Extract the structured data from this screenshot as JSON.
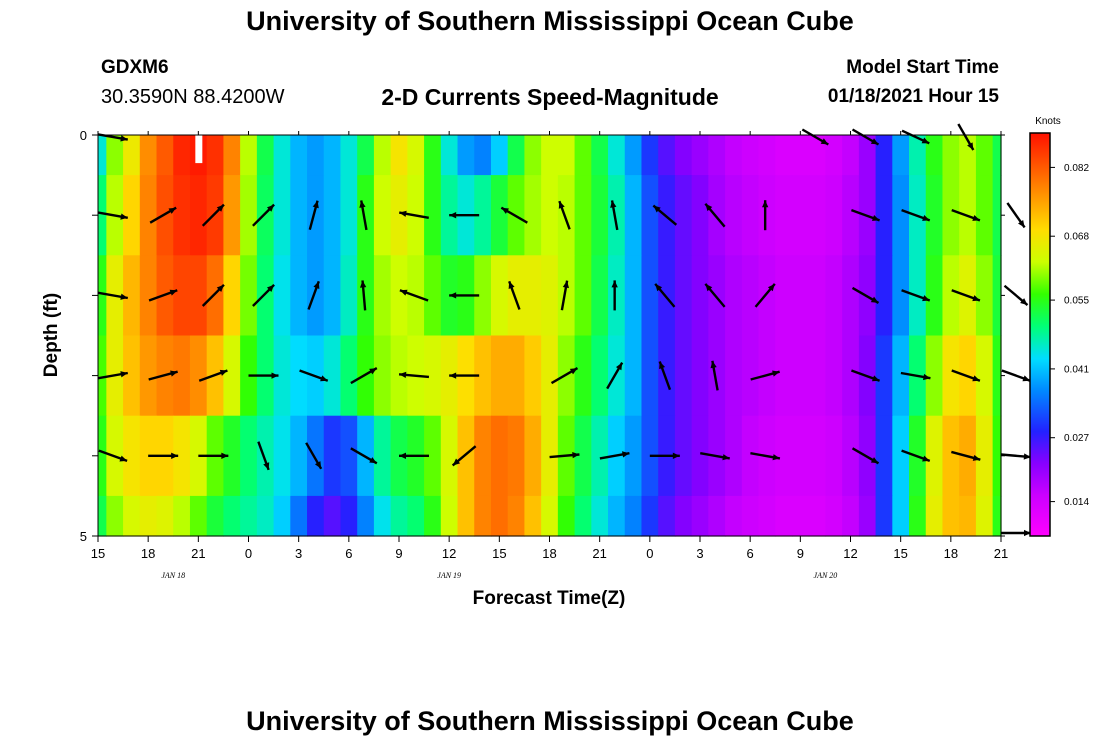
{
  "header": {
    "title": "University of Southern Mississippi Ocean Cube",
    "station": "GDXM6",
    "coords": "30.3590N 88.4200W",
    "chart_title": "2-D Currents Speed-Magnitude",
    "start_label": "Model Start Time",
    "start_value": "01/18/2021 Hour 15"
  },
  "footer": {
    "title": "University of Southern Mississippi Ocean Cube"
  },
  "chart_data": {
    "type": "heatmap",
    "title": "2-D Currents Speed-Magnitude",
    "xlabel": "Forecast Time(Z)",
    "ylabel": "Depth (ft)",
    "x_ticks": [
      "15",
      "18",
      "21",
      "0",
      "3",
      "6",
      "9",
      "12",
      "15",
      "18",
      "21",
      "0",
      "3",
      "6",
      "9",
      "12",
      "15",
      "18",
      "21"
    ],
    "x_range_hours": [
      0,
      54
    ],
    "date_labels": [
      {
        "text": "JAN 18",
        "hour": 4.5
      },
      {
        "text": "JAN 19",
        "hour": 21
      },
      {
        "text": "JAN 20",
        "hour": 43.5
      }
    ],
    "y_ticks": [
      "0",
      "5"
    ],
    "ylim": [
      0,
      5
    ],
    "depth_levels_ft": [
      0,
      1,
      2,
      3,
      4,
      5
    ],
    "speed_knots": [
      [
        0.045,
        0.06,
        0.067,
        0.077,
        0.082,
        0.087,
        0.088,
        0.086,
        0.078,
        0.062,
        0.052,
        0.045,
        0.04,
        0.038,
        0.04,
        0.045,
        0.052,
        0.062,
        0.068,
        0.064,
        0.055,
        0.045,
        0.038,
        0.036,
        0.042,
        0.052,
        0.06,
        0.063,
        0.063,
        0.058,
        0.052,
        0.045,
        0.038,
        0.03,
        0.025,
        0.022,
        0.02,
        0.018,
        0.016,
        0.015,
        0.014,
        0.013,
        0.013,
        0.013,
        0.014,
        0.016,
        0.02,
        0.028,
        0.038,
        0.047,
        0.055,
        0.06,
        0.062,
        0.058,
        0.052
      ],
      [
        0.05,
        0.062,
        0.07,
        0.078,
        0.083,
        0.086,
        0.087,
        0.085,
        0.076,
        0.061,
        0.051,
        0.045,
        0.04,
        0.038,
        0.04,
        0.045,
        0.055,
        0.063,
        0.066,
        0.063,
        0.055,
        0.048,
        0.045,
        0.048,
        0.053,
        0.058,
        0.061,
        0.063,
        0.062,
        0.058,
        0.053,
        0.047,
        0.04,
        0.032,
        0.027,
        0.024,
        0.022,
        0.019,
        0.017,
        0.016,
        0.015,
        0.014,
        0.014,
        0.014,
        0.015,
        0.017,
        0.02,
        0.028,
        0.037,
        0.046,
        0.054,
        0.06,
        0.062,
        0.058,
        0.052
      ],
      [
        0.055,
        0.066,
        0.073,
        0.078,
        0.082,
        0.084,
        0.084,
        0.08,
        0.07,
        0.059,
        0.05,
        0.044,
        0.04,
        0.038,
        0.04,
        0.046,
        0.055,
        0.061,
        0.063,
        0.062,
        0.058,
        0.054,
        0.055,
        0.06,
        0.064,
        0.066,
        0.066,
        0.065,
        0.062,
        0.058,
        0.052,
        0.046,
        0.04,
        0.032,
        0.027,
        0.024,
        0.022,
        0.02,
        0.018,
        0.017,
        0.016,
        0.015,
        0.015,
        0.015,
        0.016,
        0.018,
        0.021,
        0.028,
        0.037,
        0.046,
        0.055,
        0.062,
        0.065,
        0.06,
        0.053
      ],
      [
        0.057,
        0.066,
        0.072,
        0.076,
        0.078,
        0.079,
        0.077,
        0.072,
        0.064,
        0.056,
        0.05,
        0.045,
        0.043,
        0.042,
        0.045,
        0.05,
        0.056,
        0.06,
        0.062,
        0.063,
        0.064,
        0.066,
        0.069,
        0.072,
        0.074,
        0.074,
        0.071,
        0.066,
        0.06,
        0.055,
        0.05,
        0.045,
        0.04,
        0.032,
        0.027,
        0.024,
        0.022,
        0.02,
        0.018,
        0.017,
        0.016,
        0.015,
        0.015,
        0.015,
        0.016,
        0.018,
        0.022,
        0.03,
        0.04,
        0.05,
        0.06,
        0.068,
        0.07,
        0.064,
        0.055
      ],
      [
        0.055,
        0.064,
        0.068,
        0.07,
        0.07,
        0.068,
        0.064,
        0.058,
        0.054,
        0.05,
        0.047,
        0.044,
        0.04,
        0.035,
        0.03,
        0.032,
        0.04,
        0.048,
        0.052,
        0.054,
        0.058,
        0.064,
        0.072,
        0.078,
        0.08,
        0.079,
        0.074,
        0.066,
        0.058,
        0.052,
        0.047,
        0.042,
        0.038,
        0.032,
        0.027,
        0.024,
        0.022,
        0.02,
        0.018,
        0.016,
        0.015,
        0.014,
        0.014,
        0.014,
        0.015,
        0.017,
        0.021,
        0.03,
        0.042,
        0.054,
        0.065,
        0.072,
        0.074,
        0.066,
        0.056
      ],
      [
        0.052,
        0.06,
        0.064,
        0.066,
        0.065,
        0.062,
        0.058,
        0.053,
        0.05,
        0.048,
        0.046,
        0.042,
        0.035,
        0.028,
        0.025,
        0.028,
        0.036,
        0.044,
        0.048,
        0.05,
        0.055,
        0.063,
        0.072,
        0.078,
        0.08,
        0.078,
        0.072,
        0.064,
        0.056,
        0.05,
        0.045,
        0.04,
        0.036,
        0.03,
        0.025,
        0.022,
        0.02,
        0.018,
        0.016,
        0.015,
        0.014,
        0.013,
        0.013,
        0.013,
        0.014,
        0.016,
        0.02,
        0.03,
        0.042,
        0.055,
        0.066,
        0.072,
        0.073,
        0.065,
        0.055
      ]
    ],
    "vector_hours": [
      0,
      3,
      6,
      9,
      12,
      15,
      18,
      21,
      24,
      27,
      30,
      33,
      36,
      39,
      42,
      45,
      48,
      51,
      54
    ],
    "vector_depths_ft": [
      0,
      1,
      2,
      3,
      4,
      5
    ],
    "vector_direction_deg": [
      [
        100,
        0,
        0,
        0,
        0,
        0,
        0,
        0,
        0,
        0,
        0,
        0,
        0,
        0,
        0,
        0,
        0,
        0,
        0
      ],
      [
        100,
        60,
        45,
        45,
        15,
        350,
        280,
        270,
        300,
        340,
        350,
        310,
        320,
        0,
        20,
        110,
        110,
        110,
        145
      ],
      [
        100,
        70,
        45,
        45,
        20,
        355,
        290,
        270,
        340,
        10,
        0,
        320,
        320,
        40,
        115,
        120,
        110,
        110,
        130
      ],
      [
        80,
        75,
        70,
        90,
        110,
        60,
        275,
        270,
        75,
        60,
        30,
        340,
        350,
        75,
        120,
        110,
        100,
        110,
        110
      ],
      [
        110,
        90,
        90,
        160,
        150,
        120,
        270,
        230,
        90,
        85,
        80,
        90,
        100,
        100,
        120,
        120,
        110,
        105,
        95
      ],
      [
        0,
        0,
        0,
        0,
        0,
        0,
        0,
        0,
        0,
        0,
        0,
        0,
        0,
        0,
        0,
        0,
        0,
        0,
        90
      ]
    ],
    "vector_present": [
      [
        1,
        0,
        0,
        0,
        0,
        0,
        0,
        0,
        0,
        0,
        0,
        0,
        0,
        0,
        1,
        1,
        1,
        1,
        0
      ],
      [
        1,
        1,
        1,
        1,
        1,
        1,
        1,
        1,
        1,
        1,
        1,
        1,
        1,
        1,
        0,
        1,
        1,
        1,
        1
      ],
      [
        1,
        1,
        1,
        1,
        1,
        1,
        1,
        1,
        1,
        1,
        1,
        1,
        1,
        1,
        0,
        1,
        1,
        1,
        1
      ],
      [
        1,
        1,
        1,
        1,
        1,
        1,
        1,
        1,
        0,
        1,
        1,
        1,
        1,
        1,
        0,
        1,
        1,
        1,
        1
      ],
      [
        1,
        1,
        1,
        1,
        1,
        1,
        1,
        1,
        0,
        1,
        1,
        1,
        1,
        1,
        0,
        1,
        1,
        1,
        1
      ],
      [
        0,
        0,
        0,
        0,
        0,
        0,
        0,
        0,
        0,
        0,
        0,
        0,
        0,
        0,
        0,
        0,
        0,
        0,
        1
      ]
    ],
    "vector_top_row_override_deg": [
      [
        14,
        120
      ],
      [
        15,
        120
      ],
      [
        16,
        115
      ],
      [
        17,
        150
      ]
    ],
    "colorbar": {
      "unit": "Knots",
      "labels": [
        "0.082",
        "0.068",
        "0.055",
        "0.041",
        "0.027",
        "0.014"
      ],
      "range": [
        0.007,
        0.089
      ]
    },
    "missing_data_patch": {
      "hour": 6,
      "depth_ft": [
        0,
        0.5
      ]
    },
    "grid": false
  }
}
